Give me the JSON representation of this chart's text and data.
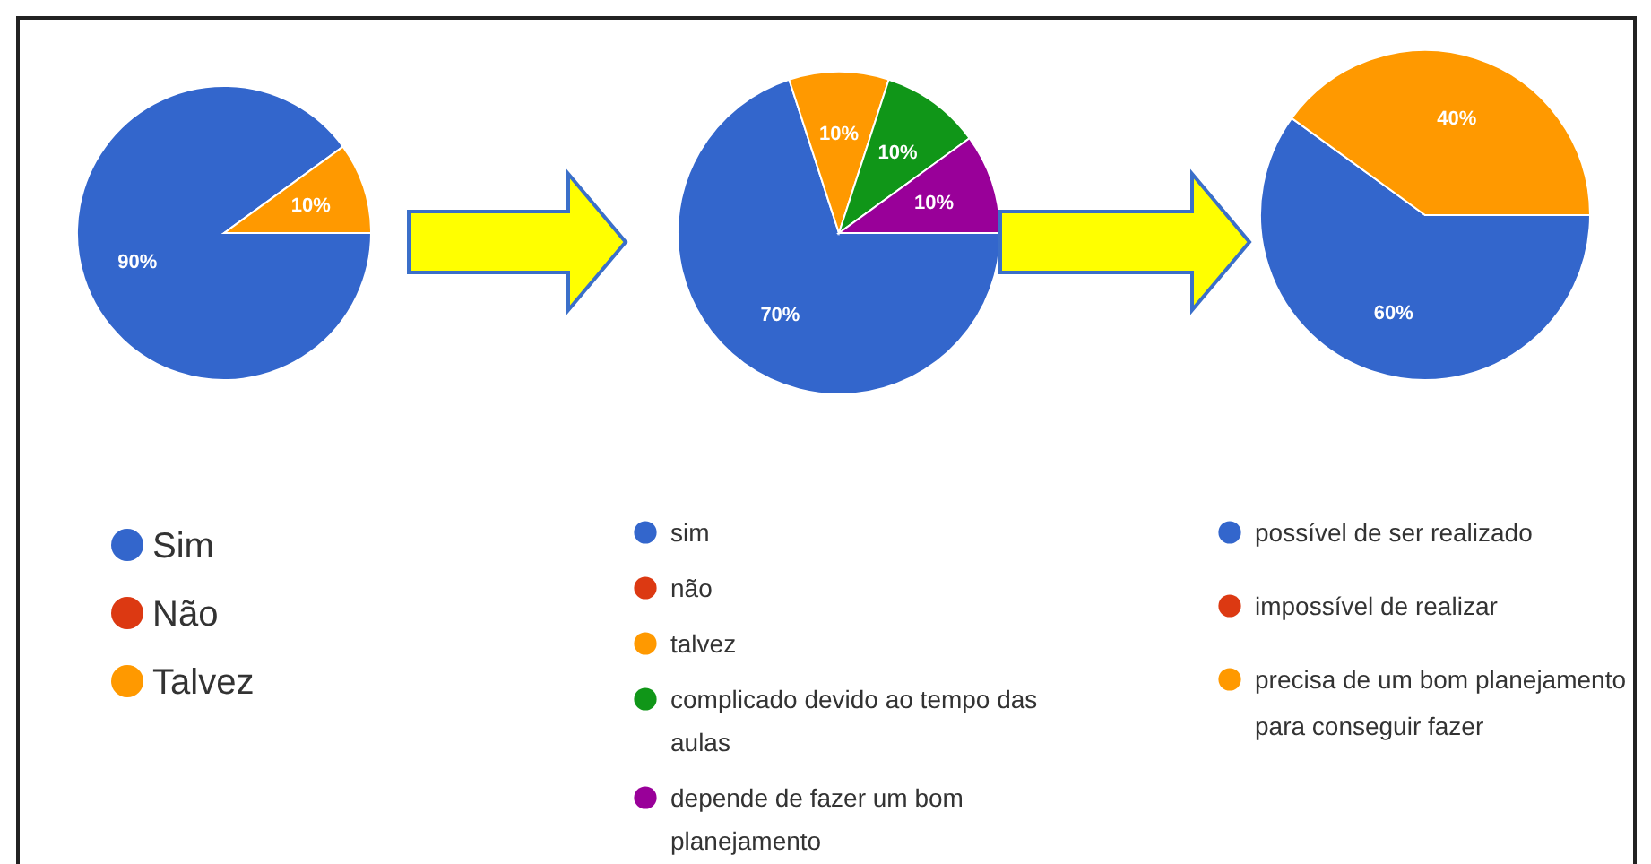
{
  "chart_data": [
    {
      "type": "pie",
      "categories": [
        "Sim",
        "Não",
        "Talvez"
      ],
      "values": [
        90,
        0,
        10
      ],
      "colors": [
        "#3366cc",
        "#dc3912",
        "#ff9900"
      ],
      "value_labels": [
        "90%",
        null,
        "10%"
      ],
      "legend": "bottom"
    },
    {
      "type": "pie",
      "categories": [
        "sim",
        "não",
        "talvez",
        "complicado devido ao tempo das aulas",
        "depende de fazer um bom planejamento"
      ],
      "values": [
        70,
        0,
        10,
        10,
        10
      ],
      "colors": [
        "#3366cc",
        "#dc3912",
        "#ff9900",
        "#109618",
        "#990099"
      ],
      "value_labels": [
        "70%",
        null,
        "10%",
        "10%",
        "10%"
      ],
      "legend": "bottom"
    },
    {
      "type": "pie",
      "categories": [
        "possível de ser realizado",
        "impossível de realizar",
        "precisa de um bom planejamento para conseguir fazer"
      ],
      "values": [
        60,
        0,
        40
      ],
      "colors": [
        "#3366cc",
        "#dc3912",
        "#ff9900"
      ],
      "value_labels": [
        "60%",
        null,
        "40%"
      ],
      "legend": "bottom"
    }
  ]
}
